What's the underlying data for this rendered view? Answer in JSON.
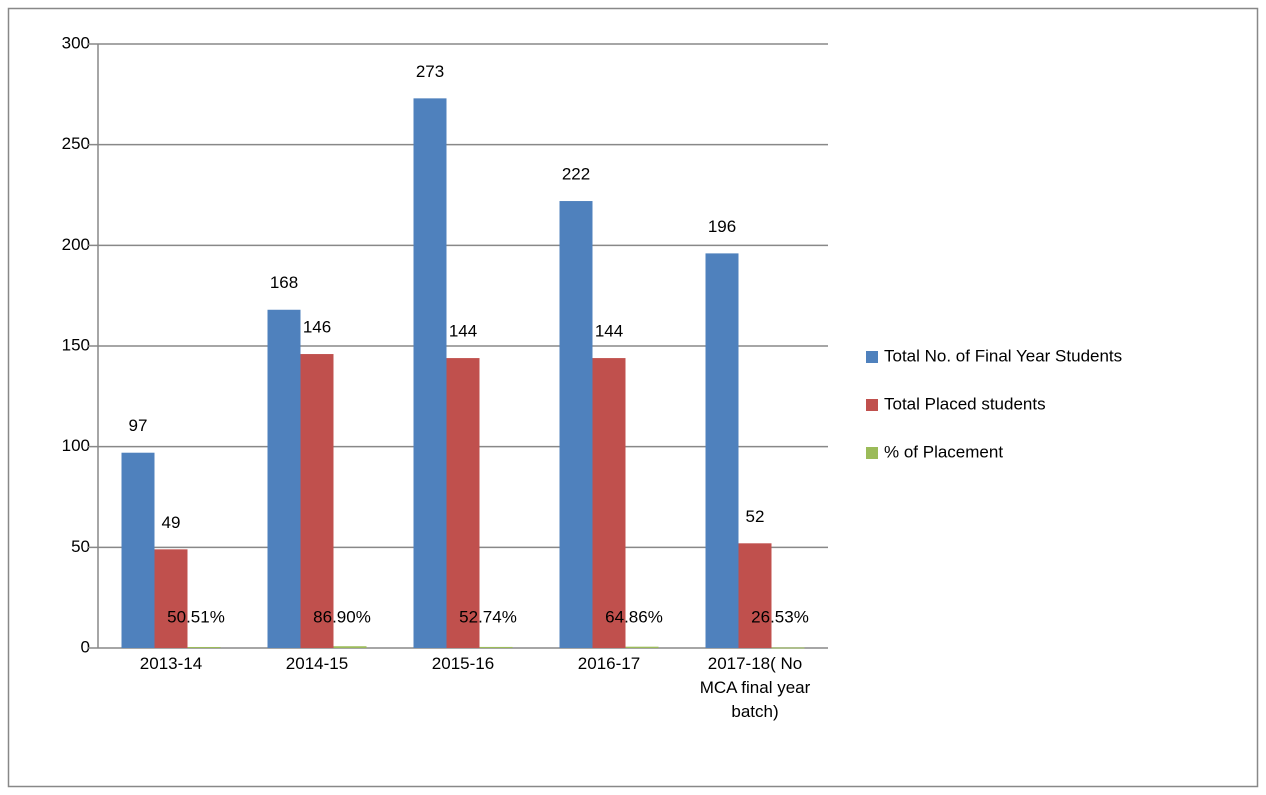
{
  "chart_data": {
    "type": "bar",
    "categories": [
      "2013-14",
      "2014-15",
      "2015-16",
      "2016-17",
      "2017-18( No MCA final year batch)"
    ],
    "series": [
      {
        "name": "Total No. of Final Year Students",
        "color": "#4f81bd",
        "values": [
          97,
          168,
          273,
          222,
          196
        ]
      },
      {
        "name": "Total Placed students",
        "color": "#c0504d",
        "values": [
          49,
          146,
          144,
          144,
          52
        ]
      },
      {
        "name": "% of Placement",
        "color": "#9bbb59",
        "values": [
          0.5051,
          0.869,
          0.5274,
          0.6486,
          0.2653
        ],
        "value_labels": [
          "50.51%",
          "86.90%",
          "52.74%",
          "64.86%",
          "26.53%"
        ]
      }
    ],
    "ylim": [
      0,
      300
    ],
    "yticks": [
      0,
      50,
      100,
      150,
      200,
      250,
      300
    ],
    "grid": true,
    "legend": "right"
  }
}
